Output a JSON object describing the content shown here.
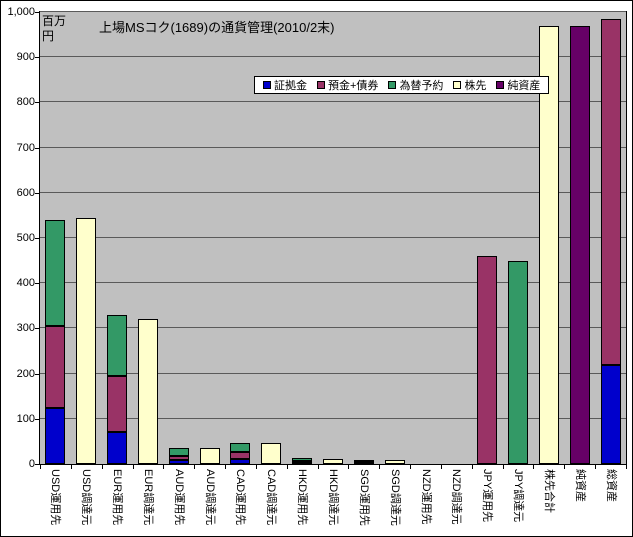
{
  "chart_data": {
    "type": "bar",
    "stacked": true,
    "title": "上場MSコク(1689)の通貨管理(2010/2末)",
    "y_unit_label": "百万円",
    "ylim": [
      0,
      1000
    ],
    "ytick_interval": 100,
    "ytick_labels": [
      "0",
      "100",
      "200",
      "300",
      "400",
      "500",
      "600",
      "700",
      "800",
      "900",
      "1,000"
    ],
    "grid": true,
    "legend_position": "top-inside",
    "plot_bg_color": "#C0C0C0",
    "categories": [
      "USD運用先",
      "USD調達元",
      "EUR運用先",
      "EUR調達元",
      "AUD運用先",
      "AUD調達元",
      "CAD運用先",
      "CAD調達元",
      "HKD運用先",
      "HKD調達元",
      "SGD運用先",
      "SGD調達元",
      "NZD運用先",
      "NZD調達元",
      "JPY運用先",
      "JPY調達元",
      "株先合計",
      "純資産",
      "総資産"
    ],
    "series": [
      {
        "name": "証拠金",
        "color": "#0000CC",
        "values": [
          125,
          0,
          70,
          0,
          8,
          0,
          12,
          0,
          3,
          0,
          2,
          0,
          0,
          0,
          0,
          0,
          0,
          0,
          220
        ]
      },
      {
        "name": "預金+債券",
        "color": "#993366",
        "values": [
          180,
          0,
          125,
          0,
          10,
          0,
          14,
          0,
          4,
          0,
          3,
          0,
          0,
          0,
          460,
          0,
          0,
          0,
          765
        ]
      },
      {
        "name": "為替予約",
        "color": "#339966",
        "values": [
          235,
          0,
          135,
          0,
          17,
          0,
          20,
          0,
          6,
          0,
          4,
          0,
          0,
          0,
          0,
          450,
          0,
          0,
          0
        ]
      },
      {
        "name": "株先",
        "color": "#FFFFCC",
        "values": [
          0,
          545,
          0,
          320,
          0,
          35,
          0,
          46,
          0,
          12,
          0,
          8,
          0,
          0,
          0,
          0,
          970,
          0,
          0
        ]
      },
      {
        "name": "純資産",
        "color": "#660066",
        "values": [
          0,
          0,
          0,
          0,
          0,
          0,
          0,
          0,
          0,
          0,
          0,
          0,
          0,
          0,
          0,
          0,
          0,
          970,
          0
        ]
      }
    ]
  }
}
